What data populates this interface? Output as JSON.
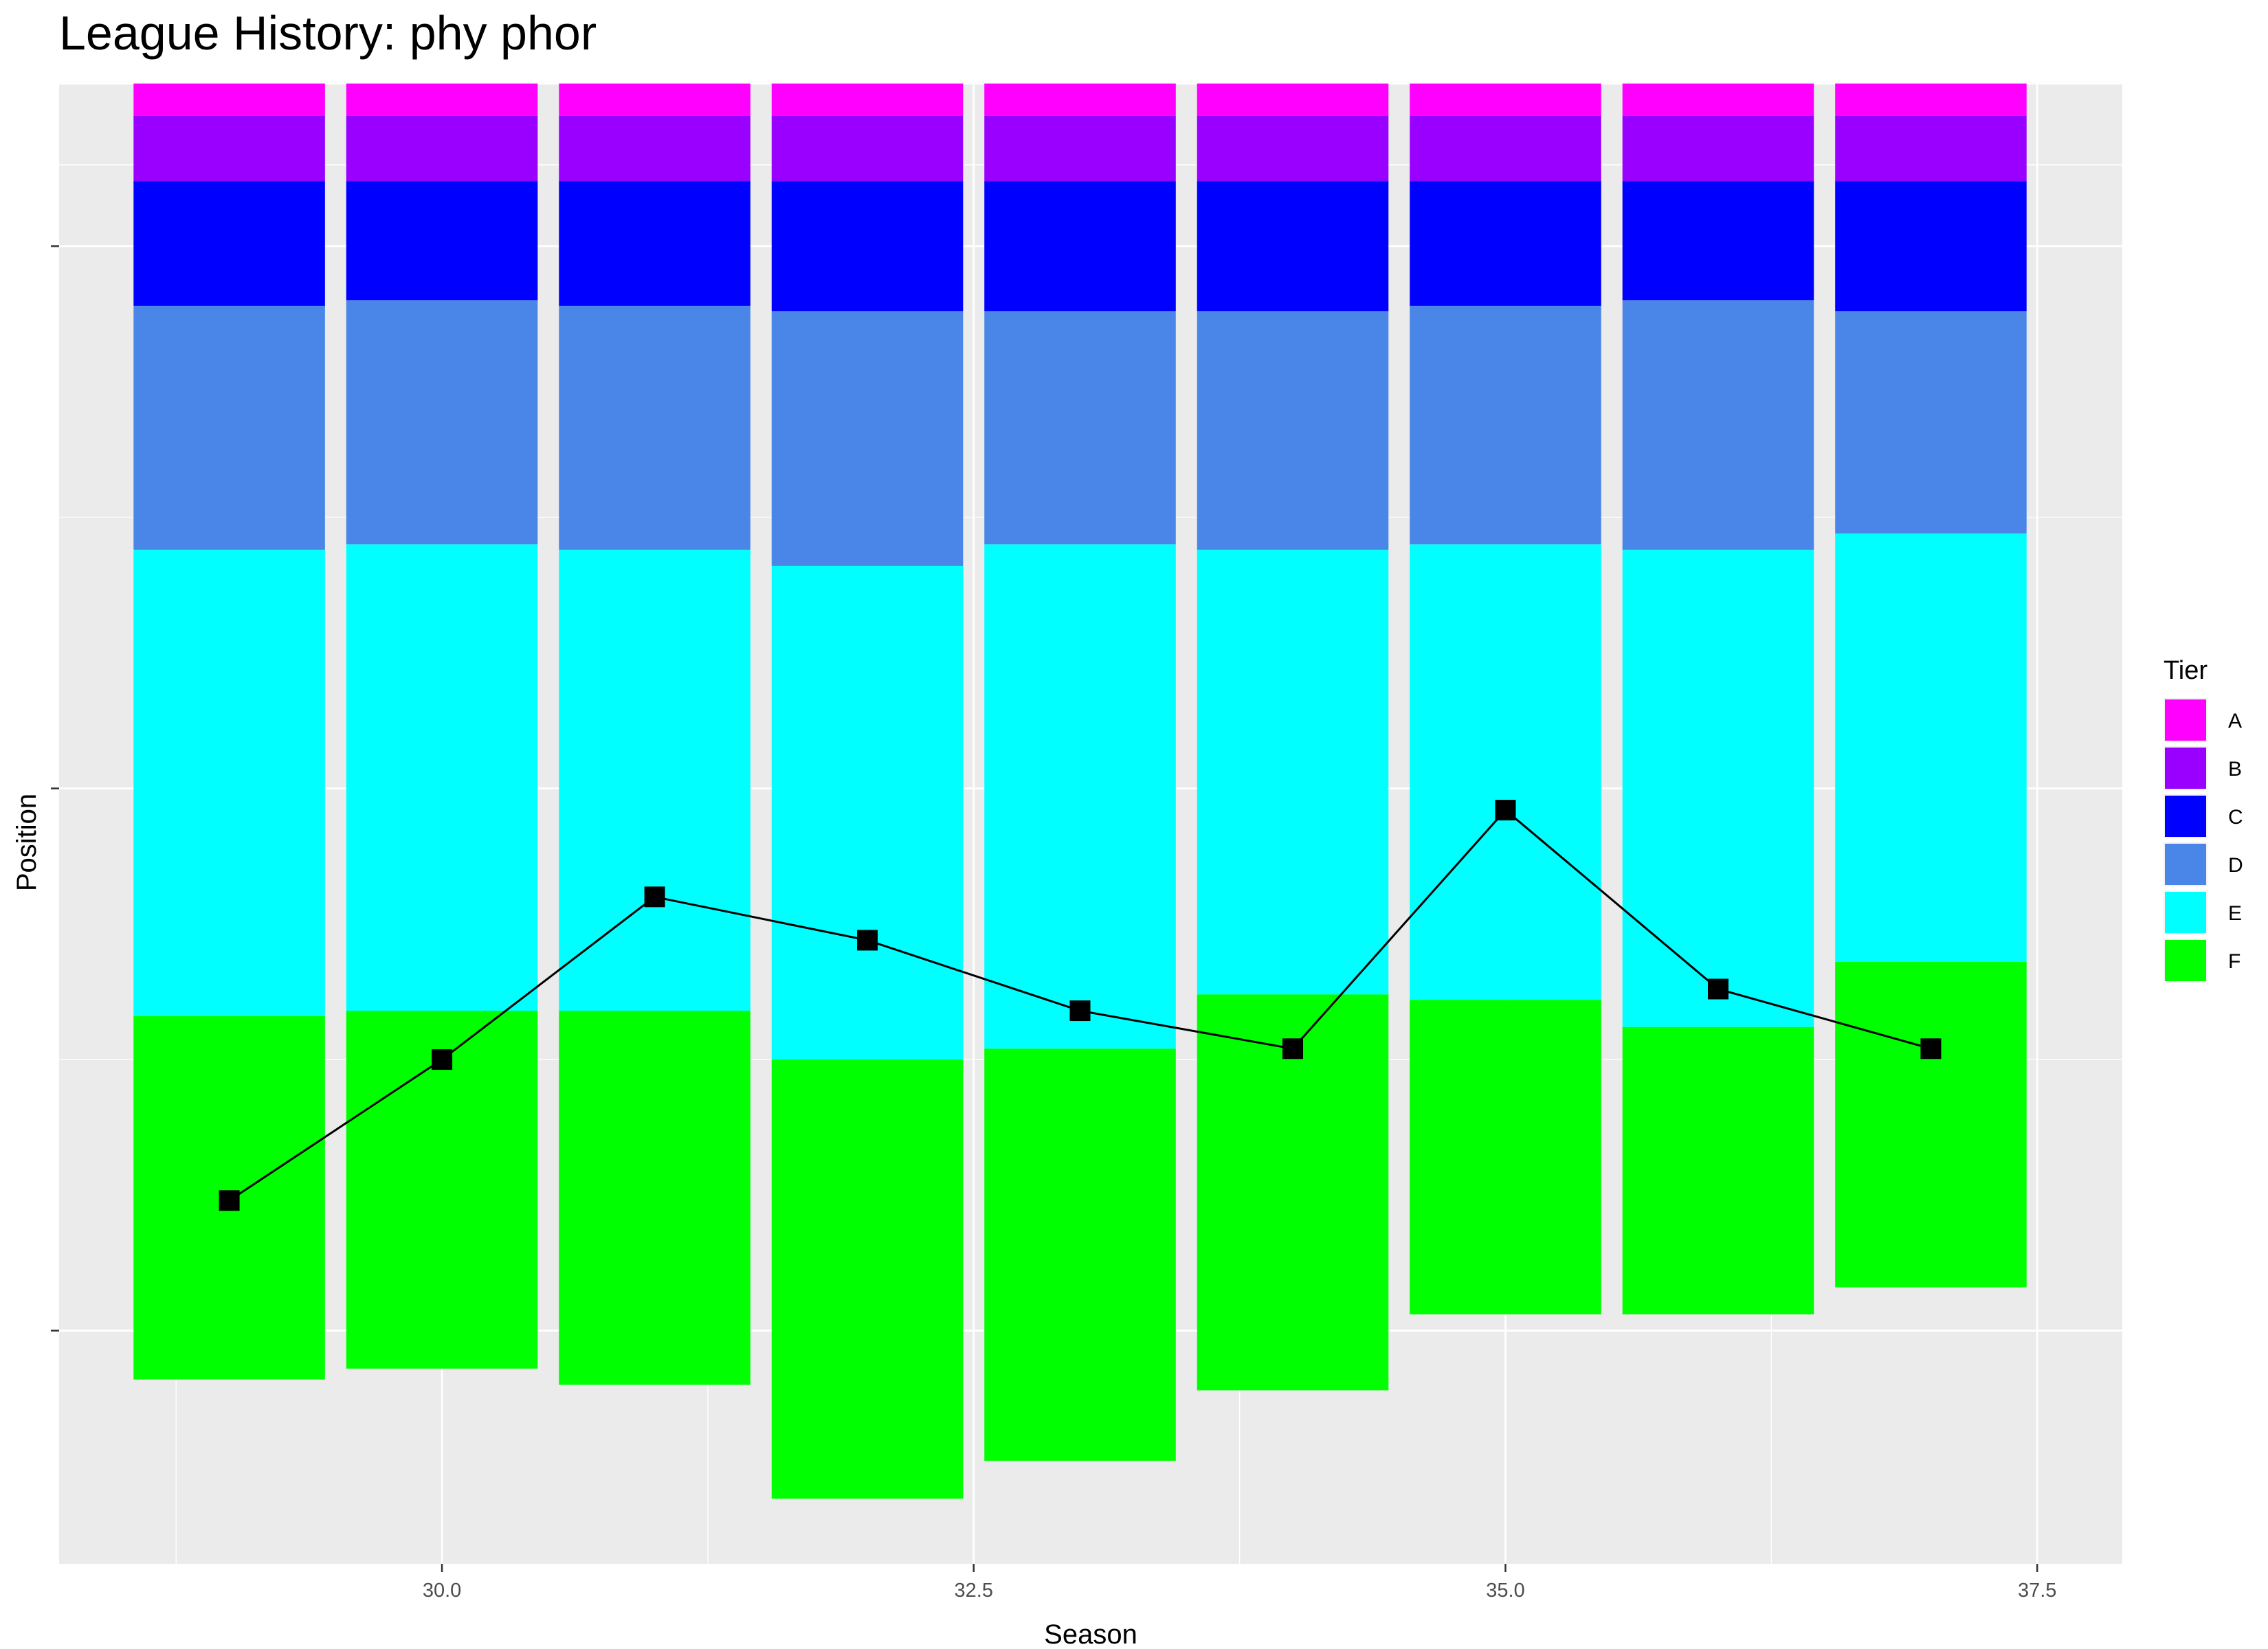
{
  "chart_data": {
    "type": "bar",
    "title": "League History: phy phor",
    "xlabel": "Season",
    "ylabel": "Position",
    "x_ticks": [
      30.0,
      32.5,
      35.0,
      37.5
    ],
    "x_tick_labels": [
      "30.0",
      "32.5",
      "35.0",
      "37.5"
    ],
    "xlim": [
      28.2,
      37.9
    ],
    "ylim": [
      -273,
      0.2
    ],
    "y_reversed": true,
    "y_tick_values": [
      -30,
      -130,
      -230
    ],
    "y_tick_labels": [
      "",
      "",
      ""
    ],
    "grid": true,
    "legend": {
      "title": "Tier",
      "position": "right",
      "entries": [
        {
          "name": "A",
          "color": "#ff00ff"
        },
        {
          "name": "B",
          "color": "#9900ff"
        },
        {
          "name": "C",
          "color": "#0000ff"
        },
        {
          "name": "D",
          "color": "#4a86e8"
        },
        {
          "name": "E",
          "color": "#00ffff"
        },
        {
          "name": "F",
          "color": "#00ff00"
        }
      ]
    },
    "stacking": "tier boundaries: league position where each tier ends",
    "seasons": [
      29,
      30,
      31,
      32,
      33,
      34,
      35,
      36,
      37
    ],
    "tier_bounds": [
      [
        6,
        18,
        41,
        86,
        172,
        239
      ],
      [
        6,
        18,
        40,
        85,
        171,
        237
      ],
      [
        6,
        18,
        41,
        86,
        171,
        240
      ],
      [
        6,
        18,
        42,
        89,
        180,
        261
      ],
      [
        6,
        18,
        42,
        85,
        178,
        254
      ],
      [
        6,
        18,
        42,
        86,
        168,
        241
      ],
      [
        6,
        18,
        41,
        85,
        169,
        227
      ],
      [
        6,
        18,
        40,
        86,
        174,
        227
      ],
      [
        6,
        18,
        42,
        83,
        162,
        222
      ]
    ],
    "series": [
      {
        "values": [
          206,
          180,
          150,
          158,
          171,
          178,
          134,
          167,
          178
        ]
      }
    ]
  }
}
